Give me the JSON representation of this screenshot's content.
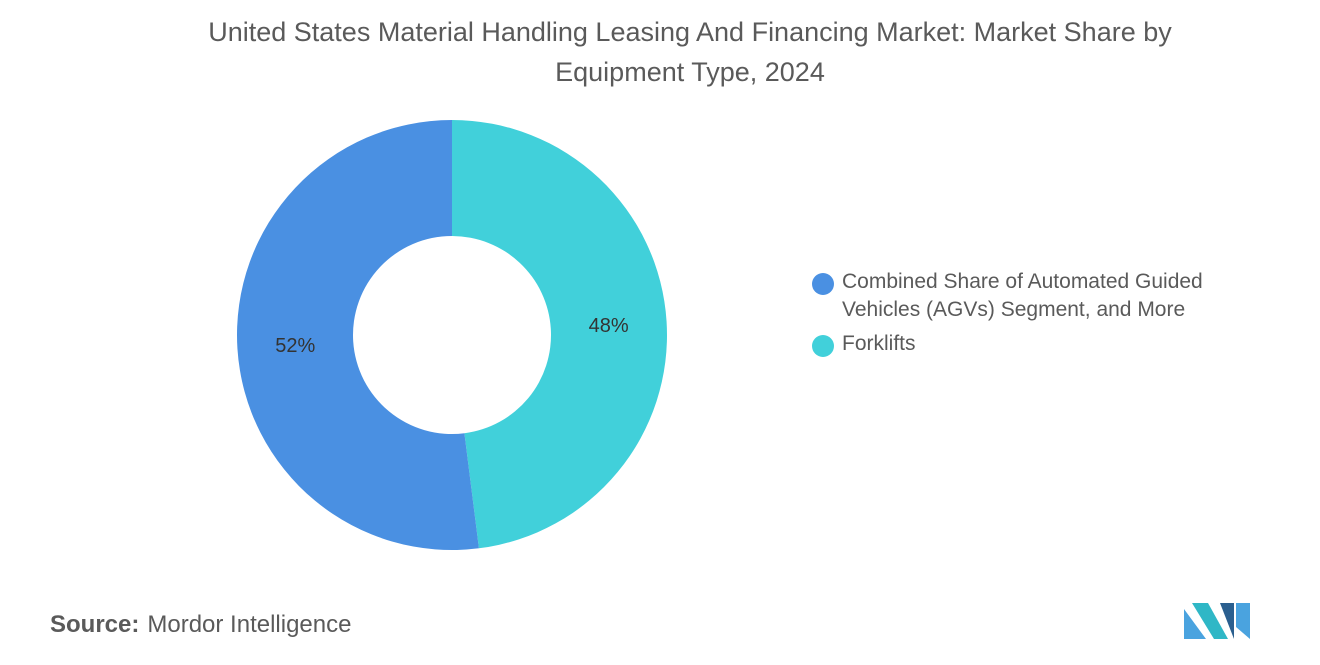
{
  "chart_data": {
    "type": "pie",
    "title": "United States Material Handling Leasing And Financing Market: Market Share by Equipment Type, 2024",
    "categories": [
      "Combined Share of Automated Guided Vehicles (AGVs) Segment, and More",
      "Forklifts"
    ],
    "values": [
      52,
      48
    ],
    "labels": [
      "52%",
      "48%"
    ],
    "colors": [
      "#4a90e2",
      "#41d0da"
    ],
    "donut": true,
    "legend_position": "right"
  },
  "source": {
    "label": "Source:",
    "value": "Mordor Intelligence"
  },
  "logo": {
    "colors": [
      "#4aa3df",
      "#2fb7c6",
      "#2a5f8f"
    ]
  }
}
